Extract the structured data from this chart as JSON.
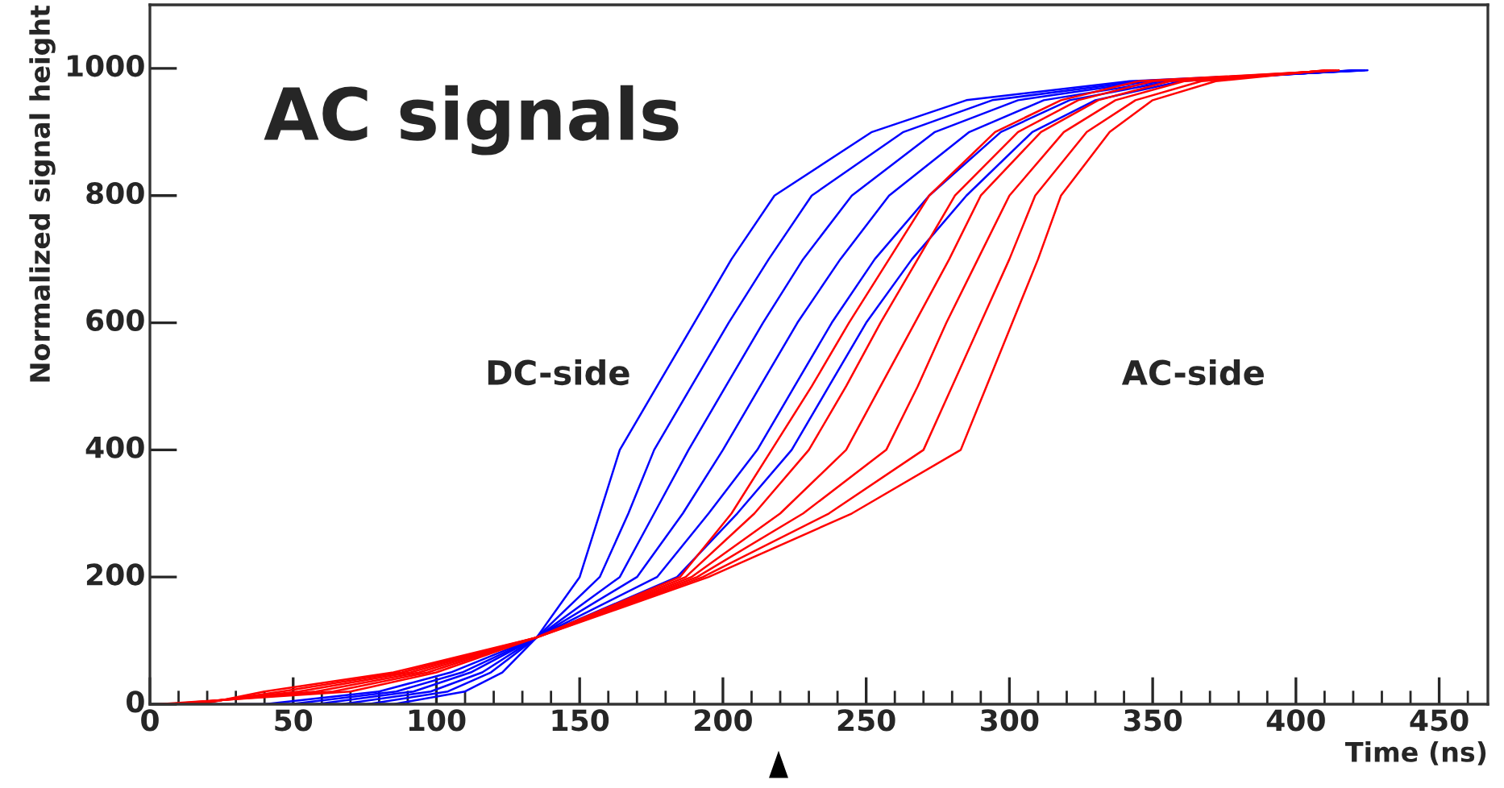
{
  "chart_data": {
    "type": "line",
    "xlabel": "Time (ns)",
    "ylabel": "Normalized signal height",
    "xlim": [
      0,
      467
    ],
    "ylim": [
      0,
      1100
    ],
    "xticks": [
      0,
      50,
      100,
      150,
      200,
      250,
      300,
      350,
      400,
      450
    ],
    "yticks": [
      0,
      200,
      400,
      600,
      800,
      1000
    ],
    "grid": false,
    "legend": false,
    "line_style": "solid",
    "annotations": [
      "AC signals",
      "DC-side",
      "AC-side"
    ],
    "series": [
      {
        "color": "#0000ff",
        "x": [
          5,
          85,
          110,
          123,
          135,
          150,
          157,
          164,
          177,
          190,
          203,
          218,
          252,
          285,
          342,
          425
        ],
        "values": [
          0,
          0,
          20,
          50,
          105,
          200,
          300,
          400,
          500,
          600,
          700,
          800,
          900,
          950,
          980,
          997
        ]
      },
      {
        "color": "#0000ff",
        "x": [
          76,
          104,
          119,
          135,
          157,
          167,
          176,
          189,
          202,
          216,
          231,
          263,
          294,
          346,
          424
        ],
        "values": [
          0,
          20,
          50,
          105,
          200,
          300,
          400,
          500,
          600,
          700,
          800,
          900,
          950,
          980,
          997
        ]
      },
      {
        "color": "#0000ff",
        "x": [
          67,
          98,
          116,
          135,
          164,
          176,
          188,
          201,
          214,
          228,
          245,
          274,
          303,
          349,
          423
        ],
        "values": [
          0,
          20,
          50,
          105,
          200,
          300,
          400,
          500,
          600,
          700,
          800,
          900,
          950,
          980,
          997
        ]
      },
      {
        "color": "#0000ff",
        "x": [
          58,
          92,
          112,
          135,
          170,
          186,
          200,
          213,
          226,
          241,
          258,
          286,
          312,
          353,
          422
        ],
        "values": [
          0,
          20,
          50,
          105,
          200,
          300,
          400,
          500,
          600,
          700,
          800,
          900,
          950,
          980,
          997
        ]
      },
      {
        "color": "#0000ff",
        "x": [
          49,
          86,
          109,
          135,
          177,
          195,
          212,
          225,
          238,
          253,
          272,
          297,
          321,
          356,
          421
        ],
        "values": [
          0,
          20,
          50,
          105,
          200,
          300,
          400,
          500,
          600,
          700,
          800,
          900,
          950,
          980,
          997
        ]
      },
      {
        "color": "#0000ff",
        "x": [
          40,
          80,
          105,
          135,
          184,
          205,
          224,
          237,
          250,
          266,
          285,
          308,
          330,
          360,
          420
        ],
        "values": [
          0,
          20,
          50,
          105,
          200,
          300,
          400,
          500,
          600,
          700,
          800,
          900,
          950,
          980,
          997
        ]
      },
      {
        "color": "#ff0000",
        "x": [
          3,
          70,
          100,
          135,
          185,
          203,
          217,
          231,
          244,
          258,
          272,
          295,
          318,
          345,
          415
        ],
        "values": [
          0,
          20,
          50,
          105,
          200,
          300,
          400,
          500,
          600,
          700,
          800,
          900,
          950,
          980,
          997
        ]
      },
      {
        "color": "#ff0000",
        "x": [
          6,
          64,
          97,
          135,
          187,
          211,
          230,
          243,
          255,
          268,
          281,
          303,
          324,
          350,
          414
        ],
        "values": [
          0,
          20,
          50,
          105,
          200,
          300,
          400,
          500,
          600,
          700,
          800,
          900,
          950,
          980,
          997
        ]
      },
      {
        "color": "#ff0000",
        "x": [
          9,
          58,
          94,
          135,
          189,
          220,
          243,
          255,
          267,
          279,
          290,
          311,
          331,
          356,
          413
        ],
        "values": [
          0,
          20,
          50,
          105,
          200,
          300,
          400,
          500,
          600,
          700,
          800,
          900,
          950,
          980,
          997
        ]
      },
      {
        "color": "#ff0000",
        "x": [
          12,
          52,
          91,
          135,
          191,
          228,
          257,
          268,
          278,
          289,
          300,
          319,
          337,
          361,
          412
        ],
        "values": [
          0,
          20,
          50,
          105,
          200,
          300,
          400,
          500,
          600,
          700,
          800,
          900,
          950,
          980,
          997
        ]
      },
      {
        "color": "#ff0000",
        "x": [
          15,
          46,
          88,
          135,
          193,
          237,
          270,
          280,
          290,
          300,
          309,
          327,
          344,
          367,
          411
        ],
        "values": [
          0,
          20,
          50,
          105,
          200,
          300,
          400,
          500,
          600,
          700,
          800,
          900,
          950,
          980,
          997
        ]
      },
      {
        "color": "#ff0000",
        "x": [
          18,
          40,
          85,
          135,
          195,
          245,
          283,
          292,
          301,
          310,
          318,
          335,
          350,
          372,
          410
        ],
        "values": [
          0,
          20,
          50,
          105,
          200,
          300,
          400,
          500,
          600,
          700,
          800,
          900,
          950,
          980,
          997
        ]
      }
    ]
  }
}
